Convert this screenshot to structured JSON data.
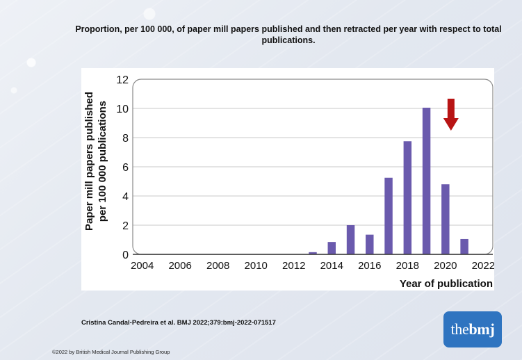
{
  "title": "Proportion, per 100 000, of paper mill papers published and then retracted per year with respect to total publications.",
  "citation": "Cristina Candal-Pedreira et al. BMJ 2022;379:bmj-2022-071517",
  "copyright": "©2022 by British Medical Journal Publishing Group",
  "logo": {
    "prefix": "the",
    "bold": "bmj"
  },
  "colors": {
    "bar": "#6a5aad",
    "arrow": "#b81414",
    "axis": "#333333",
    "grid": "#c9c9c9"
  },
  "chart_data": {
    "type": "bar",
    "x": [
      2013,
      2014,
      2015,
      2016,
      2017,
      2018,
      2019,
      2020,
      2021
    ],
    "values": [
      0.15,
      0.85,
      2.0,
      1.35,
      5.25,
      7.75,
      10.05,
      4.8,
      1.05
    ],
    "xticks": [
      "2004",
      "2006",
      "2008",
      "2010",
      "2012",
      "2014",
      "2016",
      "2018",
      "2020",
      "2022"
    ],
    "yticks": [
      "0",
      "2",
      "4",
      "6",
      "8",
      "10",
      "12"
    ],
    "xlim": [
      2003.5,
      2022.5
    ],
    "ylim": [
      0,
      12
    ],
    "xlabel": "Year of publication",
    "ylabel_line1": "Paper mill papers published",
    "ylabel_line2": "per 100 000 publications",
    "annotation": {
      "type": "arrow",
      "x": 2020,
      "direction": "down"
    },
    "grid": true
  }
}
